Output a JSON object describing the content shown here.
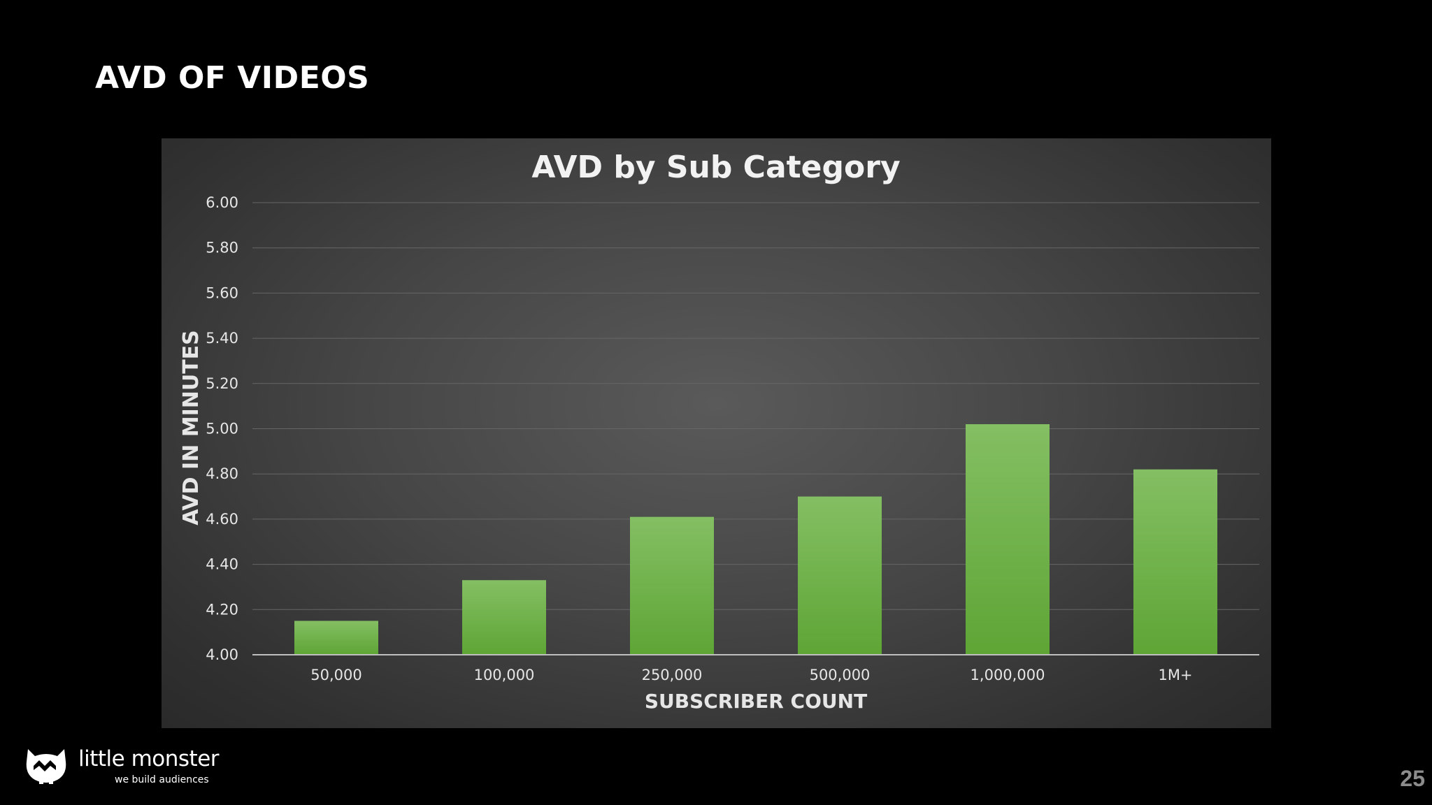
{
  "slide": {
    "title": "AVD OF VIDEOS",
    "page_number": "25"
  },
  "logo": {
    "name": "little monster",
    "tagline": "we build audiences",
    "icon": "monster-logo-icon"
  },
  "colors": {
    "background": "#000000",
    "bar_top": "#84bf63",
    "bar_bottom": "#5ea535",
    "grid": "#666666",
    "text": "#e6e6e6"
  },
  "chart_data": {
    "type": "bar",
    "title": "AVD by Sub Category",
    "xlabel": "SUBSCRIBER COUNT",
    "ylabel": "AVD IN MINUTES",
    "categories": [
      "50,000",
      "100,000",
      "250,000",
      "500,000",
      "1,000,000",
      "1M+"
    ],
    "values": [
      4.15,
      4.33,
      4.61,
      4.7,
      5.02,
      4.82
    ],
    "ylim": [
      4.0,
      6.0
    ],
    "yticks": [
      "4.00",
      "4.20",
      "4.40",
      "4.60",
      "4.80",
      "5.00",
      "5.20",
      "5.40",
      "5.60",
      "5.80",
      "6.00"
    ],
    "grid": true,
    "legend": "none"
  }
}
